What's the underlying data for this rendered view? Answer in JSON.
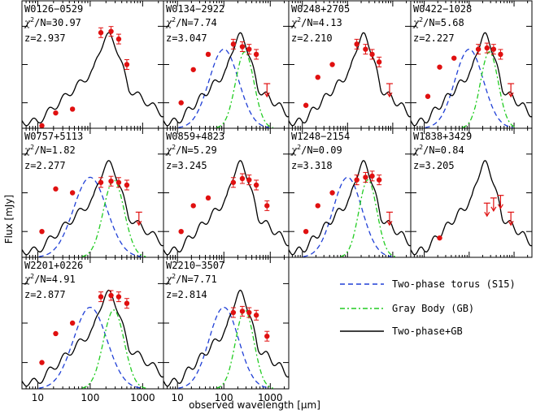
{
  "figure": {
    "ylabel": "Flux [mJy]",
    "xlabel": "observed wavelength [μm]",
    "xtick_labels": [
      "10",
      "100",
      "1000"
    ],
    "legend": [
      {
        "label": "Two-phase torus (S15)",
        "style": "dashed",
        "color": "#1f3fd6"
      },
      {
        "label": "Gray Body (GB)",
        "style": "dashdot",
        "color": "#22cc22"
      },
      {
        "label": "Two-phase+GB",
        "style": "solid",
        "color": "#000000"
      }
    ],
    "colors": {
      "data": "#e01010",
      "torus": "#1f3fd6",
      "graybody": "#22cc22",
      "total": "#000000"
    }
  },
  "chart_data": [
    {
      "type": "scatter",
      "name": "W0126−0529",
      "chi2": "30.97",
      "z": "2.937",
      "xscale": "log",
      "xlim": [
        5,
        2500
      ],
      "points": [
        [
          12,
          0.02
        ],
        [
          22,
          0.12
        ],
        [
          46,
          0.15
        ],
        [
          160,
          0.75
        ],
        [
          250,
          0.76
        ],
        [
          350,
          0.7
        ],
        [
          500,
          0.5
        ]
      ],
      "upper_limits": [],
      "curves": [
        "total"
      ]
    },
    {
      "type": "scatter",
      "name": "W0134−2922",
      "chi2": "7.74",
      "z": "3.047",
      "xscale": "log",
      "xlim": [
        5,
        2500
      ],
      "points": [
        [
          12,
          0.2
        ],
        [
          22,
          0.46
        ],
        [
          46,
          0.58
        ],
        [
          160,
          0.66
        ],
        [
          250,
          0.64
        ],
        [
          350,
          0.62
        ],
        [
          500,
          0.58
        ]
      ],
      "upper_limits": [
        [
          850,
          0.35
        ]
      ],
      "curves": [
        "total",
        "torus",
        "graybody"
      ]
    },
    {
      "type": "scatter",
      "name": "W0248+2705",
      "chi2": "4.13",
      "z": "2.210",
      "xscale": "log",
      "xlim": [
        5,
        2500
      ],
      "points": [
        [
          12,
          0.18
        ],
        [
          22,
          0.4
        ],
        [
          46,
          0.5
        ],
        [
          160,
          0.66
        ],
        [
          250,
          0.62
        ],
        [
          350,
          0.58
        ],
        [
          500,
          0.52
        ]
      ],
      "upper_limits": [
        [
          850,
          0.35
        ]
      ],
      "curves": [
        "total"
      ]
    },
    {
      "type": "scatter",
      "name": "W0422−1028",
      "chi2": "5.68",
      "z": "2.227",
      "xscale": "log",
      "xlim": [
        5,
        2500
      ],
      "points": [
        [
          12,
          0.25
        ],
        [
          22,
          0.48
        ],
        [
          46,
          0.55
        ],
        [
          160,
          0.62
        ],
        [
          250,
          0.63
        ],
        [
          350,
          0.62
        ],
        [
          500,
          0.58
        ]
      ],
      "upper_limits": [
        [
          850,
          0.35
        ]
      ],
      "curves": [
        "total",
        "torus",
        "graybody"
      ]
    },
    {
      "type": "scatter",
      "name": "W0757+5113",
      "chi2": "1.82",
      "z": "2.277",
      "xscale": "log",
      "xlim": [
        5,
        2500
      ],
      "points": [
        [
          12,
          0.2
        ],
        [
          22,
          0.53
        ],
        [
          46,
          0.5
        ],
        [
          160,
          0.58
        ],
        [
          250,
          0.59
        ],
        [
          350,
          0.58
        ],
        [
          500,
          0.56
        ]
      ],
      "upper_limits": [
        [
          850,
          0.35
        ]
      ],
      "curves": [
        "total",
        "torus",
        "graybody"
      ]
    },
    {
      "type": "scatter",
      "name": "W0859+4823",
      "chi2": "5.29",
      "z": "3.245",
      "xscale": "log",
      "xlim": [
        5,
        2500
      ],
      "points": [
        [
          12,
          0.2
        ],
        [
          22,
          0.4
        ],
        [
          46,
          0.46
        ],
        [
          160,
          0.58
        ],
        [
          250,
          0.61
        ],
        [
          350,
          0.6
        ],
        [
          500,
          0.56
        ],
        [
          850,
          0.4
        ]
      ],
      "upper_limits": [],
      "curves": [
        "total"
      ]
    },
    {
      "type": "scatter",
      "name": "W1248−2154",
      "chi2": "0.09",
      "z": "3.318",
      "xscale": "log",
      "xlim": [
        5,
        2500
      ],
      "points": [
        [
          12,
          0.2
        ],
        [
          22,
          0.4
        ],
        [
          46,
          0.5
        ],
        [
          160,
          0.6
        ],
        [
          250,
          0.62
        ],
        [
          350,
          0.63
        ],
        [
          500,
          0.6
        ]
      ],
      "upper_limits": [
        [
          850,
          0.35
        ]
      ],
      "curves": [
        "total",
        "torus",
        "graybody"
      ]
    },
    {
      "type": "scatter",
      "name": "W1838+3429",
      "chi2": "0.84",
      "z": "3.205",
      "xscale": "log",
      "xlim": [
        5,
        2500
      ],
      "points": [
        [
          22,
          0.15
        ]
      ],
      "upper_limits": [
        [
          250,
          0.42
        ],
        [
          350,
          0.46
        ],
        [
          500,
          0.48
        ],
        [
          850,
          0.35
        ]
      ],
      "curves": [
        "total"
      ]
    },
    {
      "type": "scatter",
      "name": "W2201+0226",
      "chi2": "4.91",
      "z": "2.877",
      "xscale": "log",
      "xlim": [
        5,
        2500
      ],
      "points": [
        [
          12,
          0.2
        ],
        [
          22,
          0.42
        ],
        [
          46,
          0.5
        ],
        [
          160,
          0.7
        ],
        [
          250,
          0.71
        ],
        [
          350,
          0.7
        ],
        [
          500,
          0.65
        ]
      ],
      "upper_limits": [],
      "curves": [
        "total",
        "torus",
        "graybody"
      ]
    },
    {
      "type": "scatter",
      "name": "W2210−3507",
      "chi2": "7.71",
      "z": "2.814",
      "xscale": "log",
      "xlim": [
        5,
        2500
      ],
      "points": [
        [
          160,
          0.58
        ],
        [
          250,
          0.59
        ],
        [
          350,
          0.58
        ],
        [
          500,
          0.56
        ],
        [
          850,
          0.4
        ]
      ],
      "upper_limits": [],
      "curves": [
        "total",
        "torus",
        "graybody"
      ]
    }
  ]
}
